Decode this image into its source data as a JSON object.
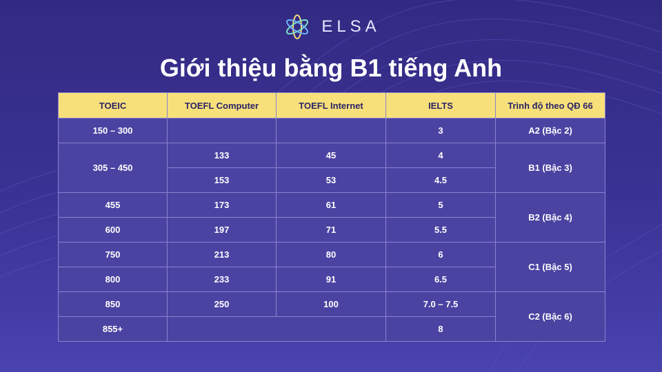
{
  "brand": {
    "name": "ELSA",
    "icon": "elsa-flower-logo"
  },
  "title": "Giới thiệu bằng B1 tiếng Anh",
  "table": {
    "headers": [
      "TOEIC",
      "TOEFL Computer",
      "TOEFL Internet",
      "IELTS",
      "Trình độ theo QĐ 66"
    ],
    "rows": [
      {
        "toeic": "150 – 300",
        "toefl_cbt": "",
        "toefl_ibt": "",
        "ielts": "3",
        "level": "A2 (Bậc 2)"
      },
      {
        "toeic": "305 – 450",
        "toefl_cbt": "133",
        "toefl_ibt": "45",
        "ielts": "4",
        "level": "B1 (Bậc 3)"
      },
      {
        "toeic": "",
        "toefl_cbt": "153",
        "toefl_ibt": "53",
        "ielts": "4.5",
        "level": ""
      },
      {
        "toeic": "455",
        "toefl_cbt": "173",
        "toefl_ibt": "61",
        "ielts": "5",
        "level": "B2 (Bậc 4)"
      },
      {
        "toeic": "600",
        "toefl_cbt": "197",
        "toefl_ibt": "71",
        "ielts": "5.5",
        "level": ""
      },
      {
        "toeic": "750",
        "toefl_cbt": "213",
        "toefl_ibt": "80",
        "ielts": "6",
        "level": "C1 (Bậc 5)"
      },
      {
        "toeic": "800",
        "toefl_cbt": "233",
        "toefl_ibt": "91",
        "ielts": "6.5",
        "level": ""
      },
      {
        "toeic": "850",
        "toefl_cbt": "250",
        "toefl_ibt": "100",
        "ielts": "7.0 – 7.5",
        "level": "C2 (Bậc 6)"
      },
      {
        "toeic": "855+",
        "toefl_cbt": "",
        "toefl_ibt": "",
        "ielts": "8",
        "level": ""
      }
    ]
  },
  "colors": {
    "background": "#3b3395",
    "header_bg": "#f7e07a",
    "cell_bg": "#4b43a2",
    "border": "#8a83d0"
  }
}
